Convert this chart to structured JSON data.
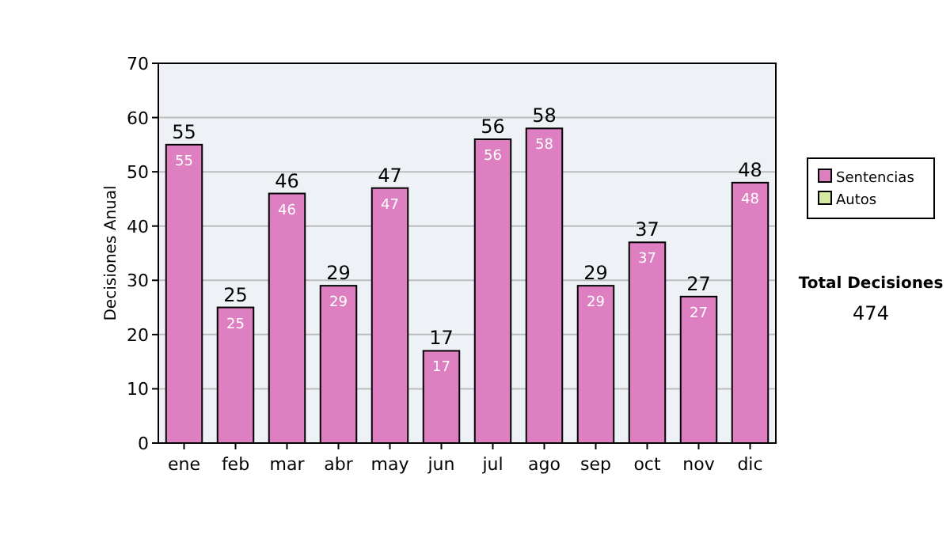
{
  "chart_data": {
    "type": "bar",
    "ylabel": "Decisiones Anual",
    "categories": [
      "ene",
      "feb",
      "mar",
      "abr",
      "may",
      "jun",
      "jul",
      "ago",
      "sep",
      "oct",
      "nov",
      "dic"
    ],
    "series": [
      {
        "name": "Sentencias",
        "color": "#dd7fc0",
        "values": [
          55,
          25,
          46,
          29,
          47,
          17,
          56,
          58,
          29,
          37,
          27,
          48
        ],
        "value_labels": [
          "55",
          "25",
          "46",
          "29",
          "47",
          "17",
          "56",
          "58",
          "29",
          "37",
          "27",
          "48"
        ]
      },
      {
        "name": "Autos",
        "color": "#d4e8a0",
        "values": [
          null,
          null,
          null,
          null,
          null,
          null,
          null,
          null,
          null,
          null,
          null,
          null
        ]
      }
    ],
    "ylim": [
      0,
      70
    ],
    "yticks": [
      0,
      10,
      20,
      30,
      40,
      50,
      60,
      70
    ],
    "grid": "y",
    "legend": "right",
    "annotations": [
      "Total Decisiones",
      "474",
      {
        "text": "55",
        "x": "ene",
        "y": 55
      },
      {
        "text": "25",
        "x": "feb",
        "y": 25
      },
      {
        "text": "46",
        "x": "mar",
        "y": 46
      },
      {
        "text": "29",
        "x": "abr",
        "y": 29
      },
      {
        "text": "47",
        "x": "may",
        "y": 47
      },
      {
        "text": "17",
        "x": "jun",
        "y": 17
      },
      {
        "text": "56",
        "x": "jul",
        "y": 56
      },
      {
        "text": "58",
        "x": "ago",
        "y": 58
      },
      {
        "text": "29",
        "x": "sep",
        "y": 29
      },
      {
        "text": "37",
        "x": "oct",
        "y": 37
      },
      {
        "text": "27",
        "x": "nov",
        "y": 27
      },
      {
        "text": "48",
        "x": "dic",
        "y": 48
      }
    ]
  }
}
